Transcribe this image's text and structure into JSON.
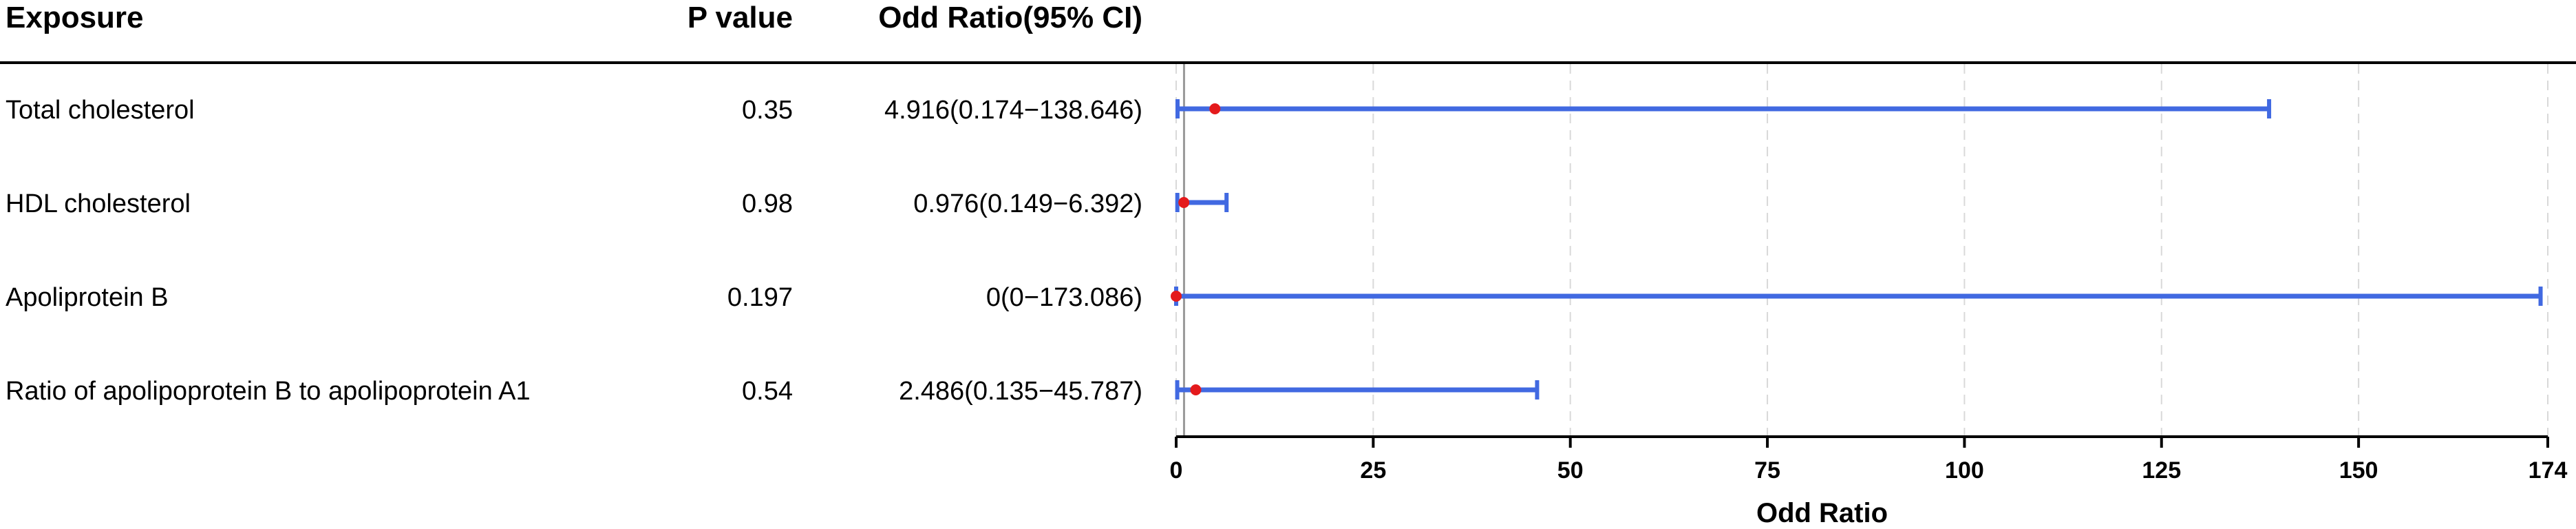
{
  "table": {
    "headers": {
      "exposure": "Exposure",
      "p_value": "P value",
      "odds_ratio": "Odd Ratio(95% CI)"
    },
    "rows": [
      {
        "exposure": "Total cholesterol",
        "p_value": "0.35",
        "or_ci": "4.916(0.174−138.646)"
      },
      {
        "exposure": "HDL cholesterol",
        "p_value": "0.98",
        "or_ci": "0.976(0.149−6.392)"
      },
      {
        "exposure": "Apoliprotein B",
        "p_value": "0.197",
        "or_ci": "0(0−173.086)"
      },
      {
        "exposure": "Ratio of apolipoprotein B to apolipoprotein A1",
        "p_value": "0.54",
        "or_ci": "2.486(0.135−45.787)"
      }
    ]
  },
  "chart_data": {
    "type": "forest",
    "xlabel": "Odd Ratio",
    "xlim": [
      0,
      174
    ],
    "xticks": [
      0,
      25,
      50,
      75,
      100,
      125,
      150,
      174
    ],
    "reference_line": 1,
    "grid": "vertical dashed",
    "points": [
      {
        "label": "Total cholesterol",
        "estimate": 4.916,
        "lower": 0.174,
        "upper": 138.646
      },
      {
        "label": "HDL cholesterol",
        "estimate": 0.976,
        "lower": 0.149,
        "upper": 6.392
      },
      {
        "label": "Apoliprotein B",
        "estimate": 0,
        "lower": 0,
        "upper": 173.086
      },
      {
        "label": "Ratio of apolipoprotein B to apolipoprotein A1",
        "estimate": 2.486,
        "lower": 0.135,
        "upper": 45.787
      }
    ],
    "colors": {
      "ci": "#4169E1",
      "point": "#E41A1C",
      "reference": "#999999",
      "grid": "#D9D9D9"
    }
  }
}
